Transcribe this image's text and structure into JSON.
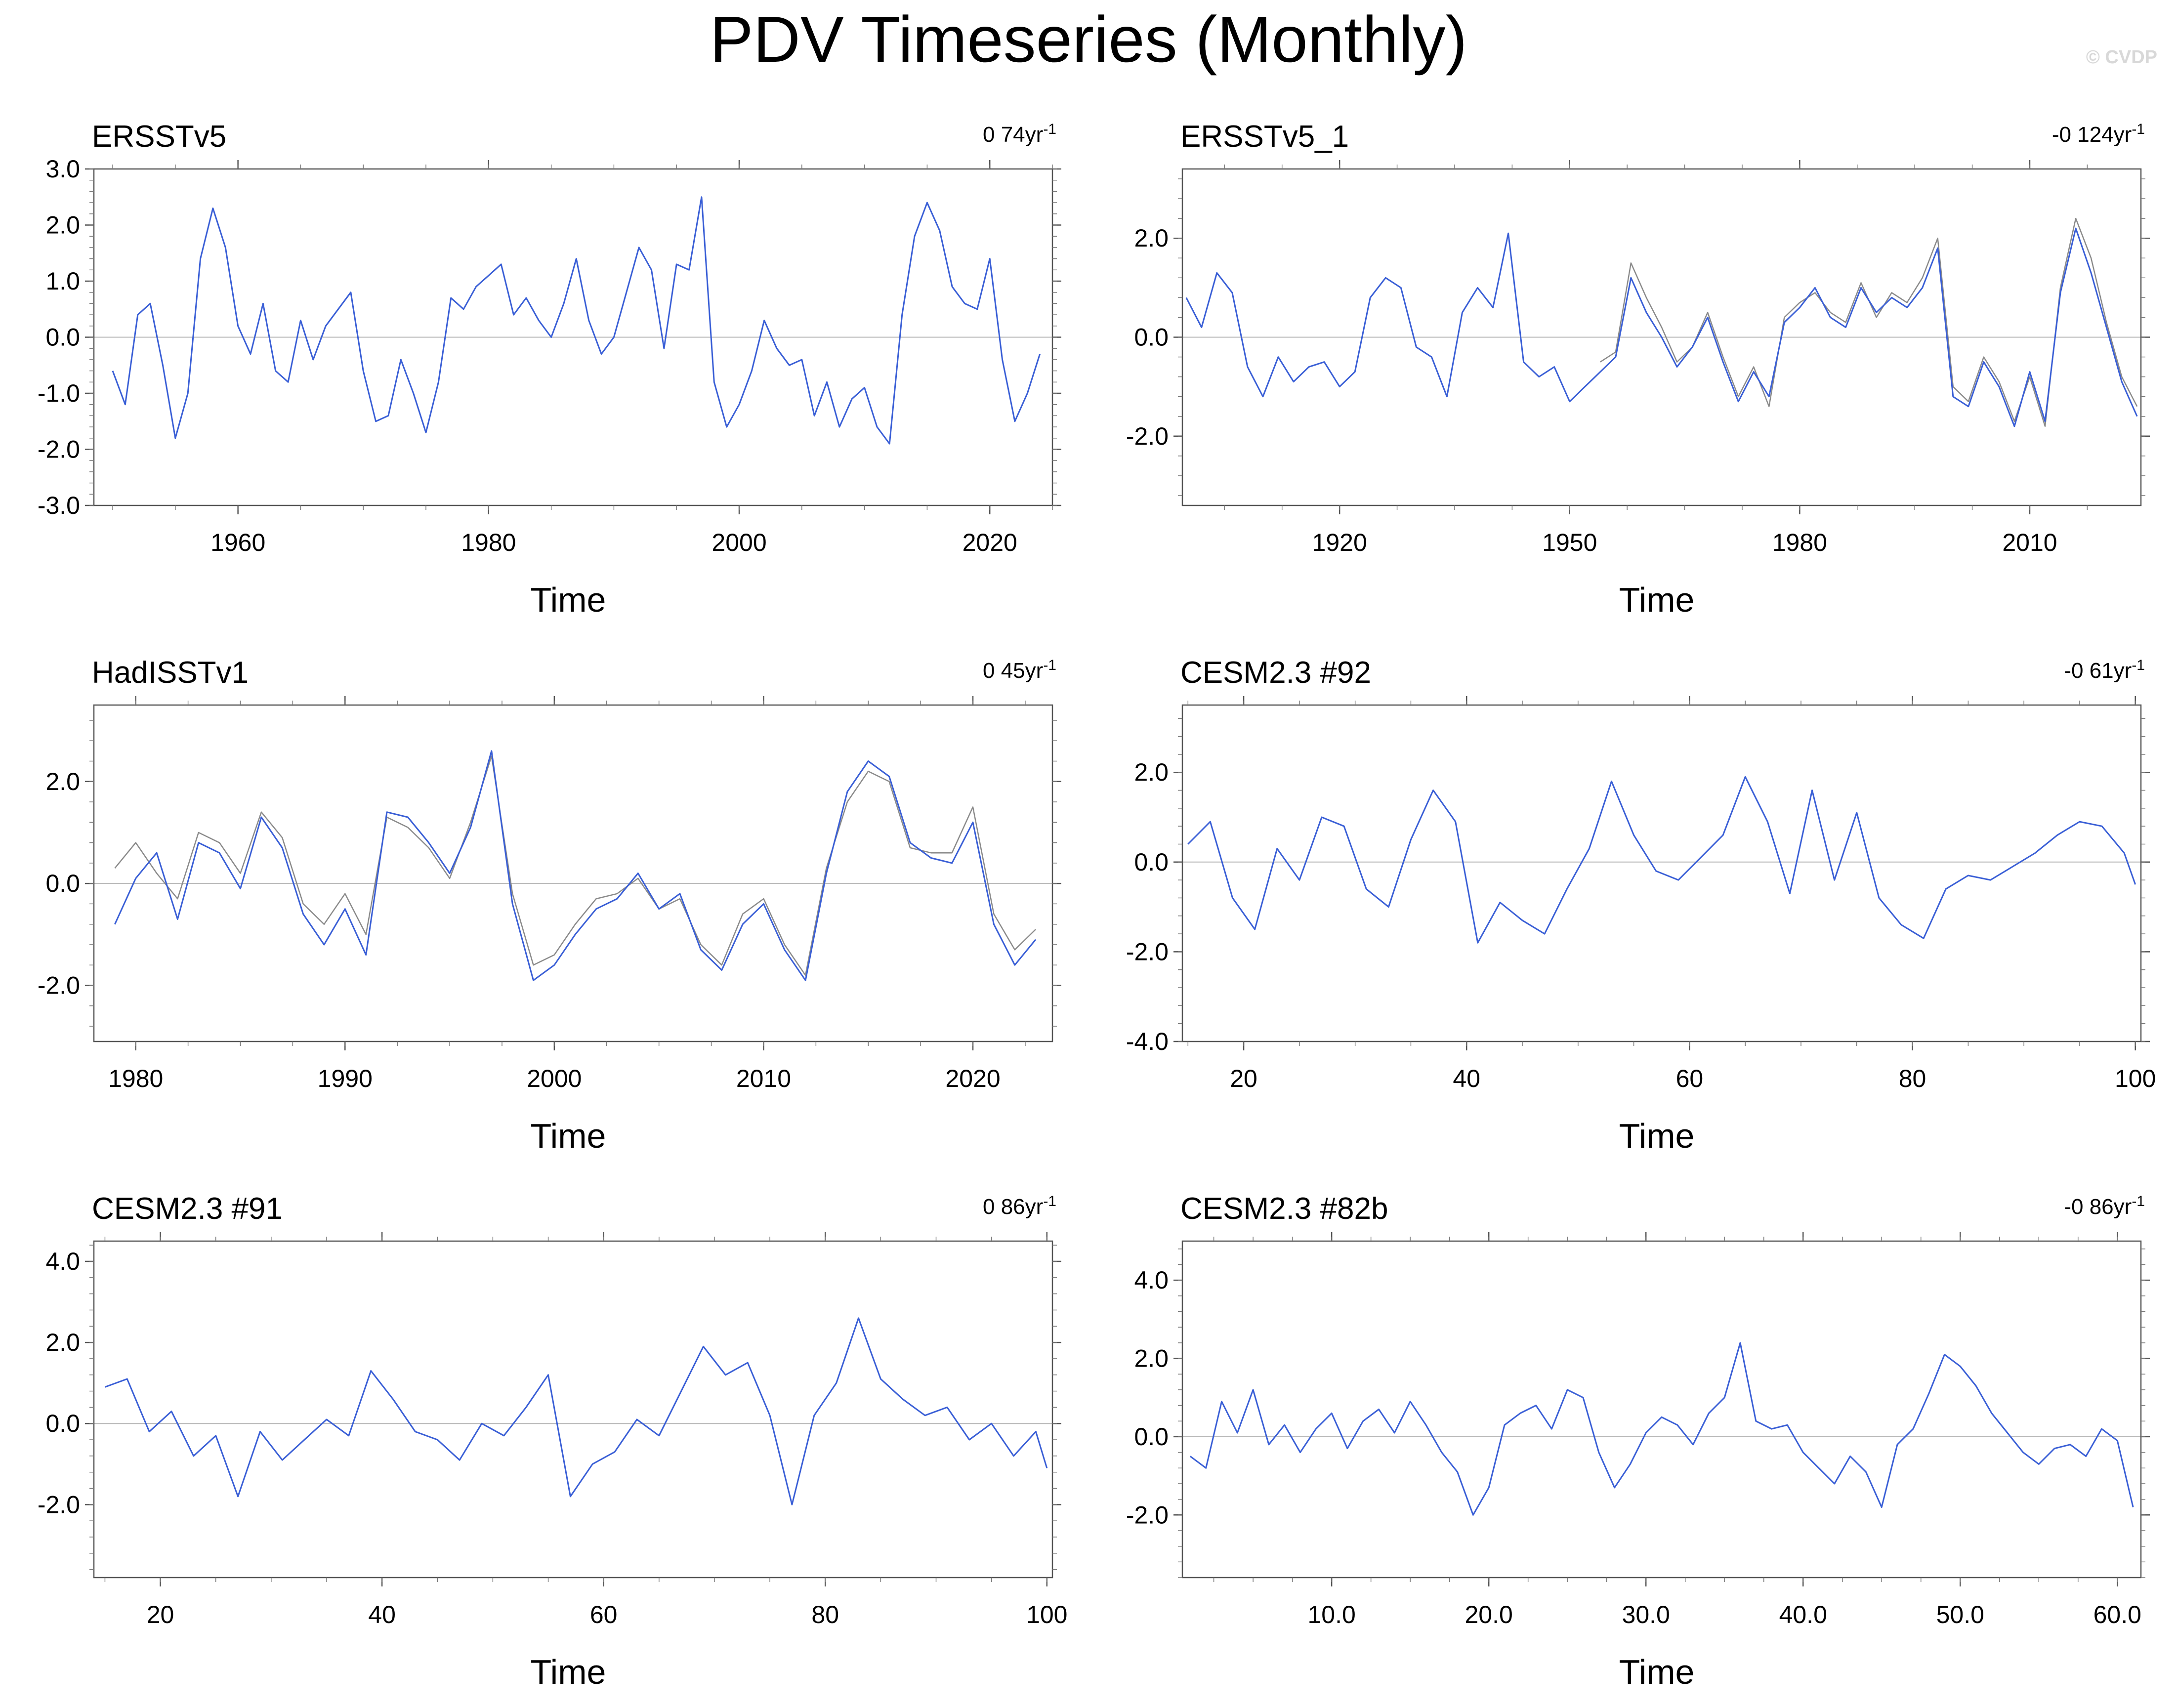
{
  "title": "PDV Timeseries (Monthly)",
  "watermark": "© CVDP",
  "colors": {
    "series": "#3a5fd6",
    "obs": "#8a8a8a",
    "zero": "#b8b8b8",
    "frame": "#000000"
  },
  "chart_data": [
    {
      "type": "line",
      "name": "ERSSTv5",
      "trend_label": "0 74yr",
      "trend_sup": "-1",
      "xlabel": "Time",
      "xlim": [
        1948.5,
        2025.0
      ],
      "ylim": [
        -3.0,
        3.0
      ],
      "yticks": [
        3.0,
        2.0,
        1.0,
        0.0,
        -1.0,
        -2.0,
        -3.0
      ],
      "ytick_labels": [
        "3.0",
        "2.0",
        "1.0",
        "0.0",
        "-1.0",
        "-2.0",
        "-3.0"
      ],
      "xticks": [
        1960,
        1980,
        2000,
        2020
      ],
      "xtick_labels": [
        "1960",
        "1980",
        "2000",
        "2020"
      ],
      "series": [
        {
          "name": "ERSSTv5",
          "color": "#3a5fd6",
          "x": [
            1950,
            1951,
            1952,
            1953,
            1954,
            1955,
            1956,
            1957,
            1958,
            1959,
            1960,
            1961,
            1962,
            1963,
            1964,
            1965,
            1966,
            1967,
            1968,
            1969,
            1970,
            1971,
            1972,
            1973,
            1974,
            1975,
            1976,
            1977,
            1978,
            1979,
            1980,
            1981,
            1982,
            1983,
            1984,
            1985,
            1986,
            1987,
            1988,
            1989,
            1990,
            1991,
            1992,
            1993,
            1994,
            1995,
            1996,
            1997,
            1998,
            1999,
            2000,
            2001,
            2002,
            2003,
            2004,
            2005,
            2006,
            2007,
            2008,
            2009,
            2010,
            2011,
            2012,
            2013,
            2014,
            2015,
            2016,
            2017,
            2018,
            2019,
            2020,
            2021,
            2022,
            2023,
            2024
          ],
          "values": [
            -0.6,
            -1.2,
            0.4,
            0.6,
            -0.5,
            -1.8,
            -1.0,
            1.4,
            2.3,
            1.6,
            0.2,
            -0.3,
            0.6,
            -0.6,
            -0.8,
            0.3,
            -0.4,
            0.2,
            0.5,
            0.8,
            -0.6,
            -1.5,
            -1.4,
            -0.4,
            -1.0,
            -1.7,
            -0.8,
            0.7,
            0.5,
            0.9,
            1.1,
            1.3,
            0.4,
            0.7,
            0.3,
            0.0,
            0.6,
            1.4,
            0.3,
            -0.3,
            0.0,
            0.8,
            1.6,
            1.2,
            -0.2,
            1.3,
            1.2,
            2.5,
            -0.8,
            -1.6,
            -1.2,
            -0.6,
            0.3,
            -0.2,
            -0.5,
            -0.4,
            -1.4,
            -0.8,
            -1.6,
            -1.1,
            -0.9,
            -1.6,
            -1.9,
            0.4,
            1.8,
            2.4,
            1.9,
            0.9,
            0.6,
            0.5,
            1.4,
            -0.4,
            -1.5,
            -1.0,
            -0.3
          ]
        }
      ]
    },
    {
      "type": "line",
      "name": "ERSSTv5_1",
      "trend_label": "-0 124yr",
      "trend_sup": "-1",
      "xlabel": "Time",
      "xlim": [
        1899.5,
        2024.5
      ],
      "ylim": [
        -3.4,
        3.4
      ],
      "yticks": [
        2.0,
        0.0,
        -2.0
      ],
      "ytick_labels": [
        "2.0",
        "0.0",
        "-2.0"
      ],
      "xticks": [
        1920,
        1950,
        1980,
        2010
      ],
      "xtick_labels": [
        "1920",
        "1950",
        "1980",
        "2010"
      ],
      "series": [
        {
          "name": "observed",
          "color": "#8a8a8a",
          "x": [
            1954,
            1956,
            1958,
            1960,
            1962,
            1964,
            1966,
            1968,
            1970,
            1972,
            1974,
            1976,
            1978,
            1980,
            1982,
            1984,
            1986,
            1988,
            1990,
            1992,
            1994,
            1996,
            1998,
            2000,
            2002,
            2004,
            2006,
            2008,
            2010,
            2012,
            2014,
            2016,
            2018,
            2020,
            2022,
            2024
          ],
          "values": [
            -0.5,
            -0.3,
            1.5,
            0.8,
            0.2,
            -0.5,
            -0.2,
            0.5,
            -0.4,
            -1.2,
            -0.6,
            -1.4,
            0.4,
            0.7,
            0.9,
            0.5,
            0.3,
            1.1,
            0.4,
            0.9,
            0.7,
            1.2,
            2.0,
            -1.0,
            -1.3,
            -0.4,
            -0.9,
            -1.7,
            -0.8,
            -1.8,
            1.0,
            2.4,
            1.6,
            0.3,
            -0.8,
            -1.4
          ]
        },
        {
          "name": "ERSSTv5_1",
          "color": "#3a5fd6",
          "x": [
            1900,
            1902,
            1904,
            1906,
            1908,
            1910,
            1912,
            1914,
            1916,
            1918,
            1920,
            1922,
            1924,
            1926,
            1928,
            1930,
            1932,
            1934,
            1936,
            1938,
            1940,
            1942,
            1944,
            1946,
            1948,
            1950,
            1952,
            1954,
            1956,
            1958,
            1960,
            1962,
            1964,
            1966,
            1968,
            1970,
            1972,
            1974,
            1976,
            1978,
            1980,
            1982,
            1984,
            1986,
            1988,
            1990,
            1992,
            1994,
            1996,
            1998,
            2000,
            2002,
            2004,
            2006,
            2008,
            2010,
            2012,
            2014,
            2016,
            2018,
            2020,
            2022,
            2024
          ],
          "values": [
            0.8,
            0.2,
            1.3,
            0.9,
            -0.6,
            -1.2,
            -0.4,
            -0.9,
            -0.6,
            -0.5,
            -1.0,
            -0.7,
            0.8,
            1.2,
            1.0,
            -0.2,
            -0.4,
            -1.2,
            0.5,
            1.0,
            0.6,
            2.1,
            -0.5,
            -0.8,
            -0.6,
            -1.3,
            -1.0,
            -0.7,
            -0.4,
            1.2,
            0.5,
            0.0,
            -0.6,
            -0.2,
            0.4,
            -0.5,
            -1.3,
            -0.7,
            -1.2,
            0.3,
            0.6,
            1.0,
            0.4,
            0.2,
            1.0,
            0.5,
            0.8,
            0.6,
            1.0,
            1.8,
            -1.2,
            -1.4,
            -0.5,
            -1.0,
            -1.8,
            -0.7,
            -1.7,
            0.9,
            2.2,
            1.3,
            0.2,
            -0.9,
            -1.6
          ]
        }
      ]
    },
    {
      "type": "line",
      "name": "HadISSTv1",
      "trend_label": "0 45yr",
      "trend_sup": "-1",
      "xlabel": "Time",
      "xlim": [
        1978.0,
        2023.8
      ],
      "ylim": [
        -3.1,
        3.5
      ],
      "yticks": [
        2.0,
        0.0,
        -2.0
      ],
      "ytick_labels": [
        "2.0",
        "0.0",
        "-2.0"
      ],
      "xticks": [
        1980,
        1990,
        2000,
        2010,
        2020
      ],
      "xtick_labels": [
        "1980",
        "1990",
        "2000",
        "2010",
        "2020"
      ],
      "series": [
        {
          "name": "observed",
          "color": "#8a8a8a",
          "x": [
            1979,
            1980,
            1981,
            1982,
            1983,
            1984,
            1985,
            1986,
            1987,
            1988,
            1989,
            1990,
            1991,
            1992,
            1993,
            1994,
            1995,
            1996,
            1997,
            1998,
            1999,
            2000,
            2001,
            2002,
            2003,
            2004,
            2005,
            2006,
            2007,
            2008,
            2009,
            2010,
            2011,
            2012,
            2013,
            2014,
            2015,
            2016,
            2017,
            2018,
            2019,
            2020,
            2021,
            2022,
            2023
          ],
          "values": [
            0.3,
            0.8,
            0.2,
            -0.3,
            1.0,
            0.8,
            0.2,
            1.4,
            0.9,
            -0.4,
            -0.8,
            -0.2,
            -1.0,
            1.3,
            1.1,
            0.7,
            0.1,
            1.2,
            2.5,
            -0.2,
            -1.6,
            -1.4,
            -0.8,
            -0.3,
            -0.2,
            0.1,
            -0.5,
            -0.3,
            -1.2,
            -1.6,
            -0.6,
            -0.3,
            -1.2,
            -1.8,
            0.3,
            1.6,
            2.2,
            2.0,
            0.7,
            0.6,
            0.6,
            1.5,
            -0.6,
            -1.3,
            -0.9
          ]
        },
        {
          "name": "HadISSTv1",
          "color": "#3a5fd6",
          "x": [
            1979,
            1980,
            1981,
            1982,
            1983,
            1984,
            1985,
            1986,
            1987,
            1988,
            1989,
            1990,
            1991,
            1992,
            1993,
            1994,
            1995,
            1996,
            1997,
            1998,
            1999,
            2000,
            2001,
            2002,
            2003,
            2004,
            2005,
            2006,
            2007,
            2008,
            2009,
            2010,
            2011,
            2012,
            2013,
            2014,
            2015,
            2016,
            2017,
            2018,
            2019,
            2020,
            2021,
            2022,
            2023
          ],
          "values": [
            -0.8,
            0.1,
            0.6,
            -0.7,
            0.8,
            0.6,
            -0.1,
            1.3,
            0.7,
            -0.6,
            -1.2,
            -0.5,
            -1.4,
            1.4,
            1.3,
            0.8,
            0.2,
            1.1,
            2.6,
            -0.4,
            -1.9,
            -1.6,
            -1.0,
            -0.5,
            -0.3,
            0.2,
            -0.5,
            -0.2,
            -1.3,
            -1.7,
            -0.8,
            -0.4,
            -1.3,
            -1.9,
            0.2,
            1.8,
            2.4,
            2.1,
            0.8,
            0.5,
            0.4,
            1.2,
            -0.8,
            -1.6,
            -1.1
          ]
        }
      ]
    },
    {
      "type": "line",
      "name": "CESM2.3 #92",
      "trend_label": "-0 61yr",
      "trend_sup": "-1",
      "xlabel": "Time",
      "xlim": [
        14.5,
        100.5
      ],
      "ylim": [
        -4.0,
        3.5
      ],
      "yticks": [
        2.0,
        0.0,
        -2.0,
        -4.0
      ],
      "ytick_labels": [
        "2.0",
        "0.0",
        "-2.0",
        "-4.0"
      ],
      "xticks": [
        20,
        40,
        60,
        80,
        100
      ],
      "xtick_labels": [
        "20",
        "40",
        "60",
        "80",
        "100"
      ],
      "series": [
        {
          "name": "CESM2.3 #92",
          "color": "#3a5fd6",
          "x": [
            15,
            17,
            19,
            21,
            23,
            25,
            27,
            29,
            31,
            33,
            35,
            37,
            39,
            41,
            43,
            45,
            47,
            49,
            51,
            53,
            55,
            57,
            59,
            61,
            63,
            65,
            67,
            69,
            71,
            73,
            75,
            77,
            79,
            81,
            83,
            85,
            87,
            89,
            91,
            93,
            95,
            97,
            99,
            100
          ],
          "values": [
            0.4,
            0.9,
            -0.8,
            -1.5,
            0.3,
            -0.4,
            1.0,
            0.8,
            -0.6,
            -1.0,
            0.5,
            1.6,
            0.9,
            -1.8,
            -0.9,
            -1.3,
            -1.6,
            -0.6,
            0.3,
            1.8,
            0.6,
            -0.2,
            -0.4,
            0.1,
            0.6,
            1.9,
            0.9,
            -0.7,
            1.6,
            -0.4,
            1.1,
            -0.8,
            -1.4,
            -1.7,
            -0.6,
            -0.3,
            -0.4,
            -0.1,
            0.2,
            0.6,
            0.9,
            0.8,
            0.2,
            -0.5
          ]
        }
      ]
    },
    {
      "type": "line",
      "name": "CESM2.3 #91",
      "trend_label": "0 86yr",
      "trend_sup": "-1",
      "xlabel": "Time",
      "xlim": [
        14.0,
        100.5
      ],
      "ylim": [
        -3.8,
        4.5
      ],
      "yticks": [
        4.0,
        2.0,
        0.0,
        -2.0
      ],
      "ytick_labels": [
        "4.0",
        "2.0",
        "0.0",
        "-2.0"
      ],
      "xticks": [
        20,
        40,
        60,
        80,
        100
      ],
      "xtick_labels": [
        "20",
        "40",
        "60",
        "80",
        "100"
      ],
      "series": [
        {
          "name": "CESM2.3 #91",
          "color": "#3a5fd6",
          "x": [
            15,
            17,
            19,
            21,
            23,
            25,
            27,
            29,
            31,
            33,
            35,
            37,
            39,
            41,
            43,
            45,
            47,
            49,
            51,
            53,
            55,
            57,
            59,
            61,
            63,
            65,
            67,
            69,
            71,
            73,
            75,
            77,
            79,
            81,
            83,
            85,
            87,
            89,
            91,
            93,
            95,
            97,
            99,
            100
          ],
          "values": [
            0.9,
            1.1,
            -0.2,
            0.3,
            -0.8,
            -0.3,
            -1.8,
            -0.2,
            -0.9,
            -0.4,
            0.1,
            -0.3,
            1.3,
            0.6,
            -0.2,
            -0.4,
            -0.9,
            0.0,
            -0.3,
            0.4,
            1.2,
            -1.8,
            -1.0,
            -0.7,
            0.1,
            -0.3,
            0.8,
            1.9,
            1.2,
            1.5,
            0.2,
            -2.0,
            0.2,
            1.0,
            2.6,
            1.1,
            0.6,
            0.2,
            0.4,
            -0.4,
            0.0,
            -0.8,
            -0.2,
            -1.1
          ]
        }
      ]
    },
    {
      "type": "line",
      "name": "CESM2.3 #82b",
      "trend_label": "-0 86yr",
      "trend_sup": "-1",
      "xlabel": "Time",
      "xlim": [
        0.5,
        61.5
      ],
      "ylim": [
        -3.6,
        5.0
      ],
      "yticks": [
        4.0,
        2.0,
        0.0,
        -2.0
      ],
      "ytick_labels": [
        "4.0",
        "2.0",
        "0.0",
        "-2.0"
      ],
      "xticks": [
        10.0,
        20.0,
        30.0,
        40.0,
        50.0,
        60.0
      ],
      "xtick_labels": [
        "10.0",
        "20.0",
        "30.0",
        "40.0",
        "50.0",
        "60.0"
      ],
      "series": [
        {
          "name": "CESM2.3 #82b",
          "color": "#3a5fd6",
          "x": [
            1,
            2,
            3,
            4,
            5,
            6,
            7,
            8,
            9,
            10,
            11,
            12,
            13,
            14,
            15,
            16,
            17,
            18,
            19,
            20,
            21,
            22,
            23,
            24,
            25,
            26,
            27,
            28,
            29,
            30,
            31,
            32,
            33,
            34,
            35,
            36,
            37,
            38,
            39,
            40,
            41,
            42,
            43,
            44,
            45,
            46,
            47,
            48,
            49,
            50,
            51,
            52,
            53,
            54,
            55,
            56,
            57,
            58,
            59,
            60,
            61
          ],
          "values": [
            -0.5,
            -0.8,
            0.9,
            0.1,
            1.2,
            -0.2,
            0.3,
            -0.4,
            0.2,
            0.6,
            -0.3,
            0.4,
            0.7,
            0.1,
            0.9,
            0.3,
            -0.4,
            -0.9,
            -2.0,
            -1.3,
            0.3,
            0.6,
            0.8,
            0.2,
            1.2,
            1.0,
            -0.4,
            -1.3,
            -0.7,
            0.1,
            0.5,
            0.3,
            -0.2,
            0.6,
            1.0,
            2.4,
            0.4,
            0.2,
            0.3,
            -0.4,
            -0.8,
            -1.2,
            -0.5,
            -0.9,
            -1.8,
            -0.2,
            0.2,
            1.1,
            2.1,
            1.8,
            1.3,
            0.6,
            0.1,
            -0.4,
            -0.7,
            -0.3,
            -0.2,
            -0.5,
            0.2,
            -0.1,
            -1.8
          ]
        }
      ]
    }
  ]
}
